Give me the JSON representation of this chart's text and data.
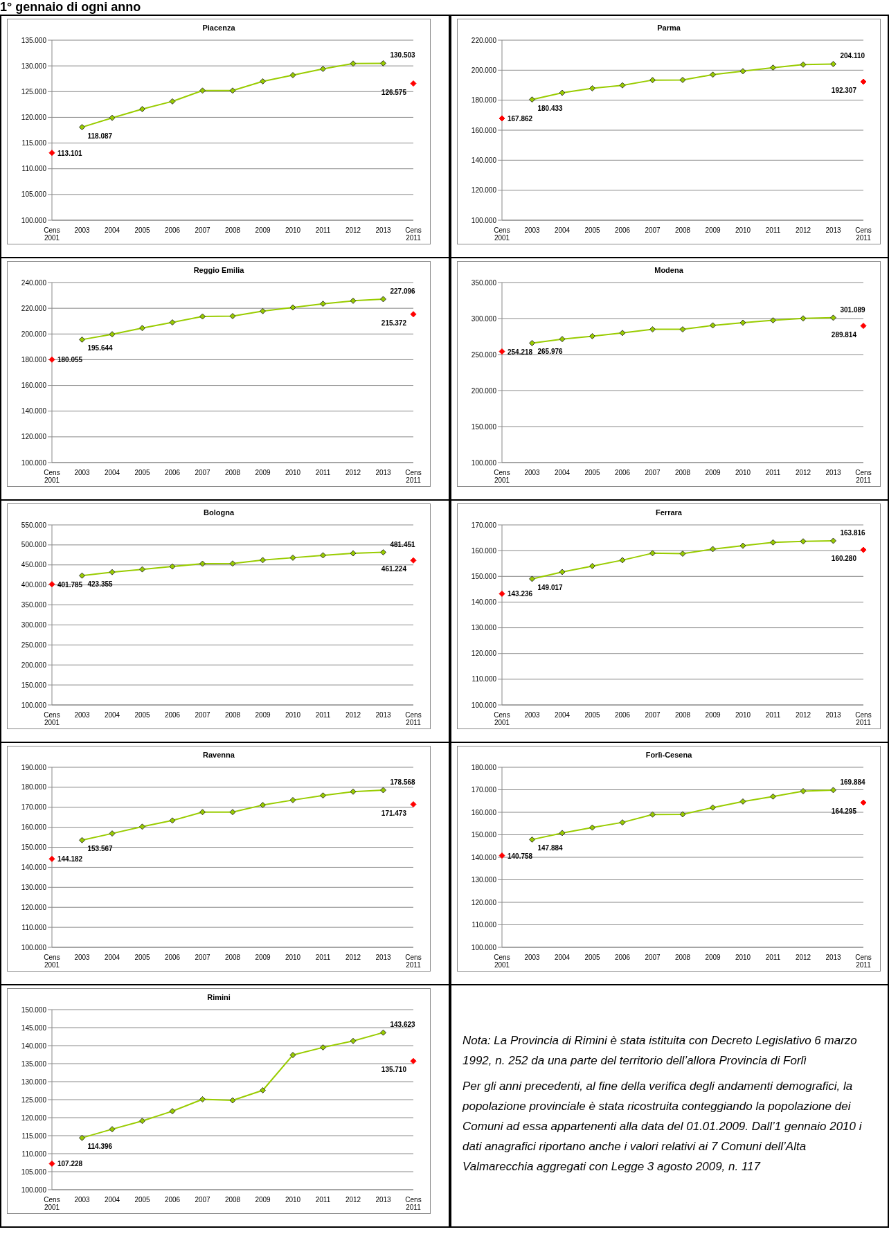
{
  "chart_data": [
    {
      "type": "other",
      "title": "1° gennaio di ogni anno"
    },
    {
      "type": "line",
      "title": "Piacenza",
      "categories": [
        "Cens 2001",
        "2003",
        "2004",
        "2005",
        "2006",
        "2007",
        "2008",
        "2009",
        "2010",
        "2011",
        "2012",
        "2013",
        "Cens 2011"
      ],
      "ylim": [
        100000,
        135000
      ],
      "yticks": [
        {
          "value": 100000,
          "label": "100.000"
        },
        {
          "value": 105000,
          "label": "105.000"
        },
        {
          "value": 110000,
          "label": "110.000"
        },
        {
          "value": 115000,
          "label": "115.000"
        },
        {
          "value": 120000,
          "label": "120.000"
        },
        {
          "value": 125000,
          "label": "125.000"
        },
        {
          "value": 130000,
          "label": "130.000"
        },
        {
          "value": 135000,
          "label": "135.000"
        }
      ],
      "grid": "y",
      "legend": false,
      "marker": "diamond",
      "series": [
        {
          "type": "line",
          "color": "#99cc00",
          "values": [
            null,
            118087,
            119900,
            121600,
            123100,
            125200,
            125200,
            127000,
            128200,
            129400,
            130450,
            130503,
            null
          ],
          "value_labels": [
            null,
            "118.087",
            null,
            null,
            null,
            null,
            null,
            null,
            null,
            null,
            null,
            "130.503",
            null
          ]
        },
        {
          "type": "scatter",
          "color": "#ff0000",
          "values": [
            113101,
            null,
            null,
            null,
            null,
            null,
            null,
            null,
            null,
            null,
            null,
            null,
            126575
          ],
          "value_labels": [
            "113.101",
            null,
            null,
            null,
            null,
            null,
            null,
            null,
            null,
            null,
            null,
            null,
            "126.575"
          ]
        }
      ]
    },
    {
      "type": "line",
      "title": "Parma",
      "categories": [
        "Cens 2001",
        "2003",
        "2004",
        "2005",
        "2006",
        "2007",
        "2008",
        "2009",
        "2010",
        "2011",
        "2012",
        "2013",
        "Cens 2011"
      ],
      "ylim": [
        100000,
        220000
      ],
      "yticks": [
        {
          "value": 100000,
          "label": "100.000"
        },
        {
          "value": 120000,
          "label": "120.000"
        },
        {
          "value": 140000,
          "label": "140.000"
        },
        {
          "value": 160000,
          "label": "160.000"
        },
        {
          "value": 180000,
          "label": "180.000"
        },
        {
          "value": 200000,
          "label": "200.000"
        },
        {
          "value": 220000,
          "label": "220.000"
        }
      ],
      "grid": "y",
      "legend": false,
      "marker": "diamond",
      "series": [
        {
          "type": "line",
          "color": "#99cc00",
          "values": [
            null,
            180433,
            184900,
            187900,
            189900,
            193400,
            193500,
            197000,
            199300,
            201700,
            203700,
            204110,
            null
          ],
          "value_labels": [
            null,
            "180.433",
            null,
            null,
            null,
            null,
            null,
            null,
            null,
            null,
            null,
            "204.110",
            null
          ]
        },
        {
          "type": "scatter",
          "color": "#ff0000",
          "values": [
            167862,
            null,
            null,
            null,
            null,
            null,
            null,
            null,
            null,
            null,
            null,
            null,
            192307
          ],
          "value_labels": [
            "167.862",
            null,
            null,
            null,
            null,
            null,
            null,
            null,
            null,
            null,
            null,
            null,
            "192.307"
          ]
        }
      ]
    },
    {
      "type": "line",
      "title": "Reggio Emilia",
      "categories": [
        "Cens 2001",
        "2003",
        "2004",
        "2005",
        "2006",
        "2007",
        "2008",
        "2009",
        "2010",
        "2011",
        "2012",
        "2013",
        "Cens 2011"
      ],
      "ylim": [
        100000,
        240000
      ],
      "yticks": [
        {
          "value": 100000,
          "label": "100.000"
        },
        {
          "value": 120000,
          "label": "120.000"
        },
        {
          "value": 140000,
          "label": "140.000"
        },
        {
          "value": 160000,
          "label": "160.000"
        },
        {
          "value": 180000,
          "label": "180.000"
        },
        {
          "value": 200000,
          "label": "200.000"
        },
        {
          "value": 220000,
          "label": "220.000"
        },
        {
          "value": 240000,
          "label": "240.000"
        }
      ],
      "grid": "y",
      "legend": false,
      "marker": "diamond",
      "series": [
        {
          "type": "line",
          "color": "#99cc00",
          "values": [
            null,
            195644,
            199800,
            204600,
            209000,
            213600,
            213900,
            217800,
            220600,
            223500,
            225800,
            227096,
            null
          ],
          "value_labels": [
            null,
            "195.644",
            null,
            null,
            null,
            null,
            null,
            null,
            null,
            null,
            null,
            "227.096",
            null
          ]
        },
        {
          "type": "scatter",
          "color": "#ff0000",
          "values": [
            180055,
            null,
            null,
            null,
            null,
            null,
            null,
            null,
            null,
            null,
            null,
            null,
            215372
          ],
          "value_labels": [
            "180.055",
            null,
            null,
            null,
            null,
            null,
            null,
            null,
            null,
            null,
            null,
            null,
            "215.372"
          ]
        }
      ]
    },
    {
      "type": "line",
      "title": "Modena",
      "categories": [
        "Cens 2001",
        "2003",
        "2004",
        "2005",
        "2006",
        "2007",
        "2008",
        "2009",
        "2010",
        "2011",
        "2012",
        "2013",
        "Cens 2011"
      ],
      "ylim": [
        100000,
        350000
      ],
      "yticks": [
        {
          "value": 100000,
          "label": "100.000"
        },
        {
          "value": 150000,
          "label": "150.000"
        },
        {
          "value": 200000,
          "label": "200.000"
        },
        {
          "value": 250000,
          "label": "250.000"
        },
        {
          "value": 300000,
          "label": "300.000"
        },
        {
          "value": 350000,
          "label": "350.000"
        }
      ],
      "grid": "y",
      "legend": false,
      "marker": "diamond",
      "series": [
        {
          "type": "line",
          "color": "#99cc00",
          "values": [
            null,
            265976,
            271500,
            275500,
            280000,
            285000,
            285000,
            290500,
            294200,
            297500,
            300200,
            301089,
            null
          ],
          "value_labels": [
            null,
            "265.976",
            null,
            null,
            null,
            null,
            null,
            null,
            null,
            null,
            null,
            "301.089",
            null
          ]
        },
        {
          "type": "scatter",
          "color": "#ff0000",
          "values": [
            254218,
            null,
            null,
            null,
            null,
            null,
            null,
            null,
            null,
            null,
            null,
            null,
            289814
          ],
          "value_labels": [
            "254.218",
            null,
            null,
            null,
            null,
            null,
            null,
            null,
            null,
            null,
            null,
            null,
            "289.814"
          ]
        }
      ]
    },
    {
      "type": "line",
      "title": "Bologna",
      "categories": [
        "Cens 2001",
        "2003",
        "2004",
        "2005",
        "2006",
        "2007",
        "2008",
        "2009",
        "2010",
        "2011",
        "2012",
        "2013",
        "Cens 2011"
      ],
      "ylim": [
        100000,
        550000
      ],
      "yticks": [
        {
          "value": 100000,
          "label": "100.000"
        },
        {
          "value": 150000,
          "label": "150.000"
        },
        {
          "value": 200000,
          "label": "200.000"
        },
        {
          "value": 250000,
          "label": "250.000"
        },
        {
          "value": 300000,
          "label": "300.000"
        },
        {
          "value": 350000,
          "label": "350.000"
        },
        {
          "value": 400000,
          "label": "400.000"
        },
        {
          "value": 450000,
          "label": "450.000"
        },
        {
          "value": 500000,
          "label": "500.000"
        },
        {
          "value": 550000,
          "label": "550.000"
        }
      ],
      "grid": "y",
      "legend": false,
      "marker": "diamond",
      "series": [
        {
          "type": "line",
          "color": "#99cc00",
          "values": [
            null,
            423355,
            432000,
            439000,
            446000,
            453000,
            453500,
            462000,
            468000,
            474000,
            479000,
            481451,
            null
          ],
          "value_labels": [
            null,
            "423.355",
            null,
            null,
            null,
            null,
            null,
            null,
            null,
            null,
            null,
            "481.451",
            null
          ]
        },
        {
          "type": "scatter",
          "color": "#ff0000",
          "values": [
            401785,
            null,
            null,
            null,
            null,
            null,
            null,
            null,
            null,
            null,
            null,
            null,
            461224
          ],
          "value_labels": [
            "401.785",
            null,
            null,
            null,
            null,
            null,
            null,
            null,
            null,
            null,
            null,
            null,
            "461.224"
          ]
        }
      ]
    },
    {
      "type": "line",
      "title": "Ferrara",
      "categories": [
        "Cens 2001",
        "2003",
        "2004",
        "2005",
        "2006",
        "2007",
        "2008",
        "2009",
        "2010",
        "2011",
        "2012",
        "2013",
        "Cens 2011"
      ],
      "ylim": [
        100000,
        170000
      ],
      "yticks": [
        {
          "value": 100000,
          "label": "100.000"
        },
        {
          "value": 110000,
          "label": "110.000"
        },
        {
          "value": 120000,
          "label": "120.000"
        },
        {
          "value": 130000,
          "label": "130.000"
        },
        {
          "value": 140000,
          "label": "140.000"
        },
        {
          "value": 150000,
          "label": "150.000"
        },
        {
          "value": 160000,
          "label": "160.000"
        },
        {
          "value": 170000,
          "label": "170.000"
        }
      ],
      "grid": "y",
      "legend": false,
      "marker": "diamond",
      "series": [
        {
          "type": "line",
          "color": "#99cc00",
          "values": [
            null,
            149017,
            151700,
            154000,
            156300,
            159000,
            158800,
            160600,
            161900,
            163200,
            163600,
            163816,
            null
          ],
          "value_labels": [
            null,
            "149.017",
            null,
            null,
            null,
            null,
            null,
            null,
            null,
            null,
            null,
            "163.816",
            null
          ]
        },
        {
          "type": "scatter",
          "color": "#ff0000",
          "values": [
            143236,
            null,
            null,
            null,
            null,
            null,
            null,
            null,
            null,
            null,
            null,
            null,
            160280
          ],
          "value_labels": [
            "143.236",
            null,
            null,
            null,
            null,
            null,
            null,
            null,
            null,
            null,
            null,
            null,
            "160.280"
          ]
        }
      ]
    },
    {
      "type": "line",
      "title": "Ravenna",
      "categories": [
        "Cens 2001",
        "2003",
        "2004",
        "2005",
        "2006",
        "2007",
        "2008",
        "2009",
        "2010",
        "2011",
        "2012",
        "2013",
        "Cens 2011"
      ],
      "ylim": [
        100000,
        190000
      ],
      "yticks": [
        {
          "value": 100000,
          "label": "100.000"
        },
        {
          "value": 110000,
          "label": "110.000"
        },
        {
          "value": 120000,
          "label": "120.000"
        },
        {
          "value": 130000,
          "label": "130.000"
        },
        {
          "value": 140000,
          "label": "140.000"
        },
        {
          "value": 150000,
          "label": "150.000"
        },
        {
          "value": 160000,
          "label": "160.000"
        },
        {
          "value": 170000,
          "label": "170.000"
        },
        {
          "value": 180000,
          "label": "180.000"
        },
        {
          "value": 190000,
          "label": "190.000"
        }
      ],
      "grid": "y",
      "legend": false,
      "marker": "diamond",
      "series": [
        {
          "type": "line",
          "color": "#99cc00",
          "values": [
            null,
            153567,
            156900,
            160300,
            163400,
            167600,
            167600,
            171100,
            173600,
            175900,
            177800,
            178568,
            null
          ],
          "value_labels": [
            null,
            "153.567",
            null,
            null,
            null,
            null,
            null,
            null,
            null,
            null,
            null,
            "178.568",
            null
          ]
        },
        {
          "type": "scatter",
          "color": "#ff0000",
          "values": [
            144182,
            null,
            null,
            null,
            null,
            null,
            null,
            null,
            null,
            null,
            null,
            null,
            171473
          ],
          "value_labels": [
            "144.182",
            null,
            null,
            null,
            null,
            null,
            null,
            null,
            null,
            null,
            null,
            null,
            "171.473"
          ]
        }
      ]
    },
    {
      "type": "line",
      "title": "Forlì-Cesena",
      "categories": [
        "Cens 2001",
        "2003",
        "2004",
        "2005",
        "2006",
        "2007",
        "2008",
        "2009",
        "2010",
        "2011",
        "2012",
        "2013",
        "Cens 2011"
      ],
      "ylim": [
        100000,
        180000
      ],
      "yticks": [
        {
          "value": 100000,
          "label": "100.000"
        },
        {
          "value": 110000,
          "label": "110.000"
        },
        {
          "value": 120000,
          "label": "120.000"
        },
        {
          "value": 130000,
          "label": "130.000"
        },
        {
          "value": 140000,
          "label": "140.000"
        },
        {
          "value": 150000,
          "label": "150.000"
        },
        {
          "value": 160000,
          "label": "160.000"
        },
        {
          "value": 170000,
          "label": "170.000"
        },
        {
          "value": 180000,
          "label": "180.000"
        }
      ],
      "grid": "y",
      "legend": false,
      "marker": "diamond",
      "series": [
        {
          "type": "line",
          "color": "#99cc00",
          "values": [
            null,
            147884,
            150800,
            153200,
            155500,
            159000,
            159100,
            162100,
            164800,
            167000,
            169400,
            169884,
            null
          ],
          "value_labels": [
            null,
            "147.884",
            null,
            null,
            null,
            null,
            null,
            null,
            null,
            null,
            null,
            "169.884",
            null
          ]
        },
        {
          "type": "scatter",
          "color": "#ff0000",
          "values": [
            140758,
            null,
            null,
            null,
            null,
            null,
            null,
            null,
            null,
            null,
            null,
            null,
            164295
          ],
          "value_labels": [
            "140.758",
            null,
            null,
            null,
            null,
            null,
            null,
            null,
            null,
            null,
            null,
            null,
            "164.295"
          ]
        }
      ]
    },
    {
      "type": "line",
      "title": "Rimini",
      "categories": [
        "Cens 2001",
        "2003",
        "2004",
        "2005",
        "2006",
        "2007",
        "2008",
        "2009",
        "2010",
        "2011",
        "2012",
        "2013",
        "Cens 2011"
      ],
      "ylim": [
        100000,
        150000
      ],
      "yticks": [
        {
          "value": 100000,
          "label": "100.000"
        },
        {
          "value": 105000,
          "label": "105.000"
        },
        {
          "value": 110000,
          "label": "110.000"
        },
        {
          "value": 115000,
          "label": "115.000"
        },
        {
          "value": 120000,
          "label": "120.000"
        },
        {
          "value": 125000,
          "label": "125.000"
        },
        {
          "value": 130000,
          "label": "130.000"
        },
        {
          "value": 135000,
          "label": "135.000"
        },
        {
          "value": 140000,
          "label": "140.000"
        },
        {
          "value": 145000,
          "label": "145.000"
        },
        {
          "value": 150000,
          "label": "150.000"
        }
      ],
      "grid": "y",
      "legend": false,
      "marker": "diamond",
      "series": [
        {
          "type": "line",
          "color": "#99cc00",
          "values": [
            null,
            114396,
            116800,
            119100,
            121800,
            125100,
            124800,
            127600,
            137400,
            139500,
            141300,
            143623,
            null
          ],
          "value_labels": [
            null,
            "114.396",
            null,
            null,
            null,
            null,
            null,
            null,
            null,
            null,
            null,
            "143.623",
            null
          ]
        },
        {
          "type": "scatter",
          "color": "#ff0000",
          "values": [
            107228,
            null,
            null,
            null,
            null,
            null,
            null,
            null,
            null,
            null,
            null,
            null,
            135710
          ],
          "value_labels": [
            "107.228",
            null,
            null,
            null,
            null,
            null,
            null,
            null,
            null,
            null,
            null,
            null,
            "135.710"
          ]
        }
      ]
    },
    {
      "type": "other",
      "annotations": [
        "Nota: La Provincia di Rimini è stata istituita con Decreto Legislativo 6 marzo 1992, n. 252 da una parte del territorio dell’allora Provincia di Forlì",
        "Per gli anni precedenti, al fine della verifica degli andamenti demografici, la popolazione provinciale è stata ricostruita conteggiando la popolazione dei Comuni ad essa appartenenti alla data del 01.01.2009. Dall’1 gennaio 2010 i dati anagrafici riportano anche i valori relativi ai 7 Comuni dell’Alta Valmarecchia aggregati con Legge 3 agosto 2009, n. 117"
      ]
    }
  ]
}
